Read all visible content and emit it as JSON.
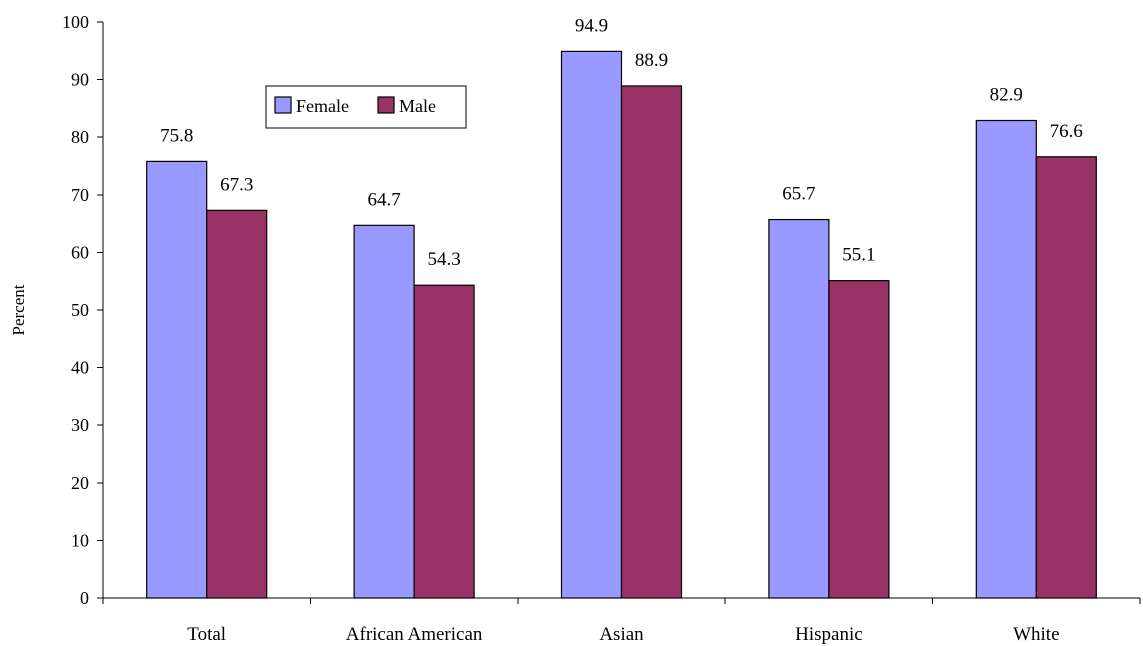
{
  "chart_data": {
    "type": "bar",
    "title": "",
    "xlabel": "",
    "ylabel": "Percent",
    "ylim": [
      0,
      100
    ],
    "yticks": [
      0,
      10,
      20,
      30,
      40,
      50,
      60,
      70,
      80,
      90,
      100
    ],
    "categories": [
      "Total",
      "African American",
      "Asian",
      "Hispanic",
      "White"
    ],
    "series": [
      {
        "name": "Female",
        "color": "#9999ff",
        "values": [
          75.8,
          64.7,
          94.9,
          65.7,
          82.9
        ]
      },
      {
        "name": "Male",
        "color": "#993366",
        "values": [
          67.3,
          54.3,
          88.9,
          55.1,
          76.6
        ]
      }
    ],
    "data_labels": true,
    "grid": false,
    "legend": {
      "placement": "top-left",
      "entries": [
        "Female",
        "Male"
      ]
    }
  }
}
